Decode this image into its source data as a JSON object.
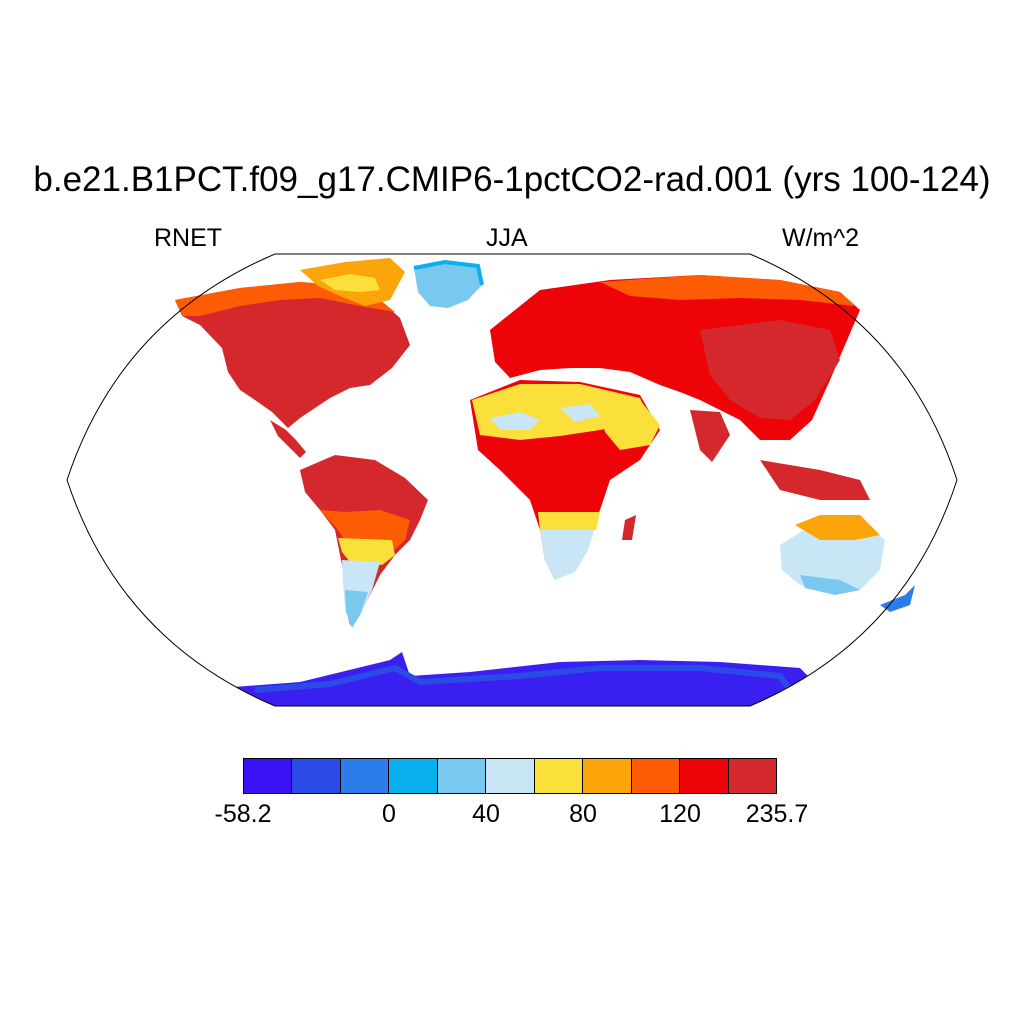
{
  "header": {
    "title": "b.e21.B1PCT.f09_g17.CMIP6-1pctCO2-rad.001 (yrs 100-124)",
    "left_label": "RNET",
    "center_label": "JJA",
    "right_label": "W/m^2"
  },
  "legend": {
    "colors": [
      "#3b12f5",
      "#2b4be8",
      "#2c7de9",
      "#0aafef",
      "#79c8f0",
      "#c9e6f7",
      "#fbe03b",
      "#fca50a",
      "#fd5c05",
      "#ee0408",
      "#d5282d"
    ],
    "tick_labels": [
      "-58.2",
      "0",
      "40",
      "80",
      "120",
      "235.7"
    ]
  },
  "map": {
    "projection": "robinson",
    "ocean_color": "#ffffff",
    "coastline_color": "#000000"
  }
}
